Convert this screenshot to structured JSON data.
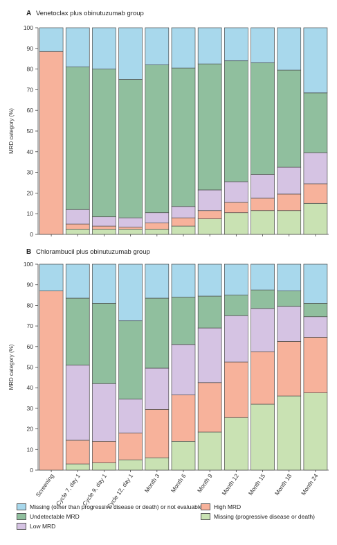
{
  "chart_data": [
    {
      "type": "bar",
      "stacked": true,
      "panel_label": "A",
      "title": "Venetoclax plus obinutuzumab group",
      "ylabel": "MRD category (%)",
      "ylim": [
        0,
        100
      ],
      "yticks": [
        0,
        10,
        20,
        30,
        40,
        50,
        60,
        70,
        80,
        90,
        100
      ],
      "categories": [
        "Screening",
        "Cycle 7, day 1",
        "Cycle 9, day 1",
        "Cycle 12, day 1",
        "Month 3",
        "Month 6",
        "Month 9",
        "Month 12",
        "Month 15",
        "Month 18",
        "Month 24"
      ],
      "series": [
        {
          "name": "Missing (progressive disease or death)",
          "color": "#c9e2b3",
          "values": [
            0,
            2.5,
            2.5,
            2.5,
            2.5,
            4,
            7.5,
            10.5,
            11.5,
            11.5,
            15
          ]
        },
        {
          "name": "High MRD",
          "color": "#f7b29b",
          "values": [
            88.5,
            2.5,
            1.5,
            1,
            3,
            4,
            4,
            5,
            6,
            8,
            9.5
          ]
        },
        {
          "name": "Low MRD",
          "color": "#d5c3e3",
          "values": [
            0,
            7,
            4.5,
            4.5,
            5,
            5.5,
            10,
            10,
            11.5,
            13,
            15
          ]
        },
        {
          "name": "Undetectable MRD",
          "color": "#90bf9e",
          "values": [
            0,
            69,
            71.5,
            67,
            71.5,
            67,
            61,
            58.5,
            54,
            47,
            29
          ]
        },
        {
          "name": "Missing (other than progressive disease or death) or not evaluable",
          "color": "#a8d8ec",
          "values": [
            11.5,
            19,
            20,
            25,
            18,
            19.5,
            17.5,
            16,
            17,
            20.5,
            31.5
          ]
        }
      ]
    },
    {
      "type": "bar",
      "stacked": true,
      "panel_label": "B",
      "title": "Chlorambucil plus obinutuzumab group",
      "ylabel": "MRD category (%)",
      "ylim": [
        0,
        100
      ],
      "yticks": [
        0,
        10,
        20,
        30,
        40,
        50,
        60,
        70,
        80,
        90,
        100
      ],
      "categories": [
        "Screening",
        "Cycle 7, day 1",
        "Cycle 9, day 1",
        "Cycle 12, day 1",
        "Month 3",
        "Month 6",
        "Month 9",
        "Month 12",
        "Month 15",
        "Month 18",
        "Month 24"
      ],
      "series": [
        {
          "name": "Missing (progressive disease or death)",
          "color": "#c9e2b3",
          "values": [
            0,
            3,
            3.5,
            5,
            6,
            14,
            18.5,
            25.5,
            32,
            36,
            37.5
          ]
        },
        {
          "name": "High MRD",
          "color": "#f7b29b",
          "values": [
            87,
            11.5,
            10.5,
            13,
            23.5,
            22.5,
            24,
            27,
            25.5,
            26.5,
            27
          ]
        },
        {
          "name": "Low MRD",
          "color": "#d5c3e3",
          "values": [
            0,
            36.5,
            28,
            16.5,
            20,
            24.5,
            26.5,
            22.5,
            21,
            17,
            10
          ]
        },
        {
          "name": "Undetectable MRD",
          "color": "#90bf9e",
          "values": [
            0,
            32.5,
            39,
            38,
            34,
            23,
            15.5,
            10,
            9,
            7.5,
            6.5
          ]
        },
        {
          "name": "Missing (other than progressive disease or death) or not evaluable",
          "color": "#a8d8ec",
          "values": [
            13,
            16.5,
            19,
            27.5,
            16.5,
            16,
            15.5,
            15,
            12.5,
            13,
            19
          ]
        }
      ]
    }
  ],
  "legend": {
    "items": [
      {
        "label": "Missing (other than progressive disease or death) or not evaluable",
        "color": "#a8d8ec"
      },
      {
        "label": "Undetectable MRD",
        "color": "#90bf9e"
      },
      {
        "label": "Low MRD",
        "color": "#d5c3e3"
      },
      {
        "label": "High MRD",
        "color": "#f7b29b"
      },
      {
        "label": "Missing (progressive disease or death)",
        "color": "#c9e2b3"
      }
    ]
  }
}
